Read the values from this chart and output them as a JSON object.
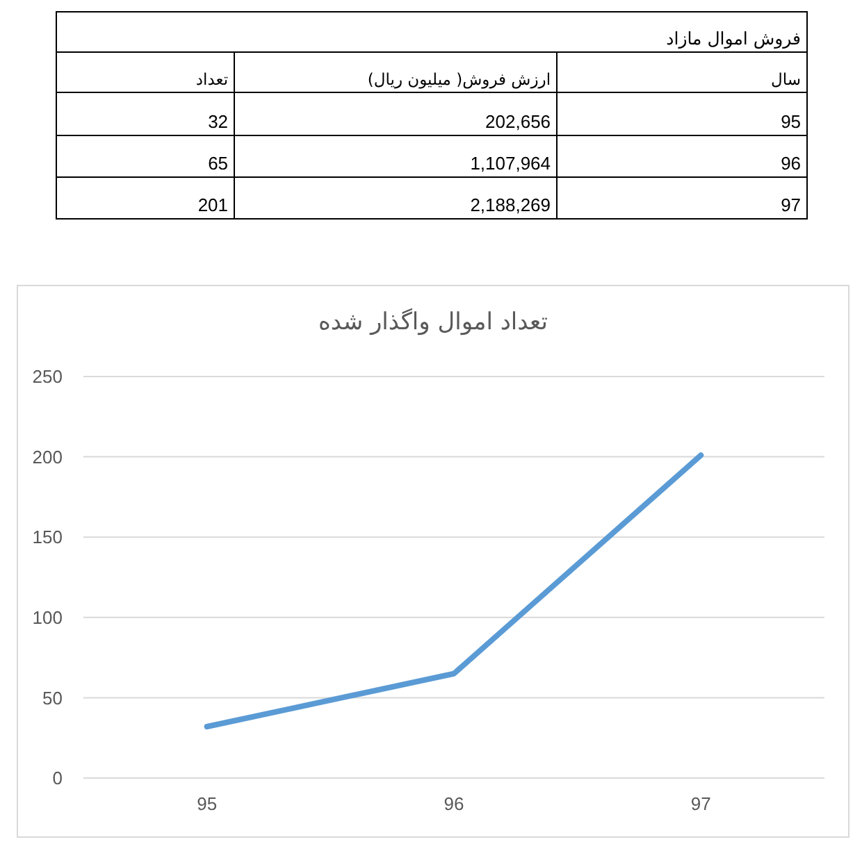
{
  "chart_data": [
    {
      "type": "other",
      "title": "فروش اموال مازاد",
      "xlabel": "سال",
      "categories": [
        "95",
        "96",
        "97"
      ],
      "series": [
        {
          "name": "ارزش فروش( میلیون ریال)",
          "values": [
            202656,
            1107964,
            2188269
          ],
          "value_labels": [
            "202,656",
            "1,107,964",
            "2,188,269"
          ]
        },
        {
          "name": "تعداد",
          "values": [
            32,
            65,
            201
          ],
          "value_labels": [
            "32",
            "65",
            "201"
          ]
        }
      ]
    },
    {
      "type": "line",
      "title": "تعداد اموال واگذار شده",
      "categories": [
        "95",
        "96",
        "97"
      ],
      "values": [
        32,
        65,
        201
      ],
      "color": "#5b9bd5",
      "ylim": [
        0,
        250
      ],
      "yticks": [
        0,
        50,
        100,
        150,
        200,
        250
      ],
      "grid": "y",
      "marker": "none",
      "line_style": "solid"
    }
  ]
}
